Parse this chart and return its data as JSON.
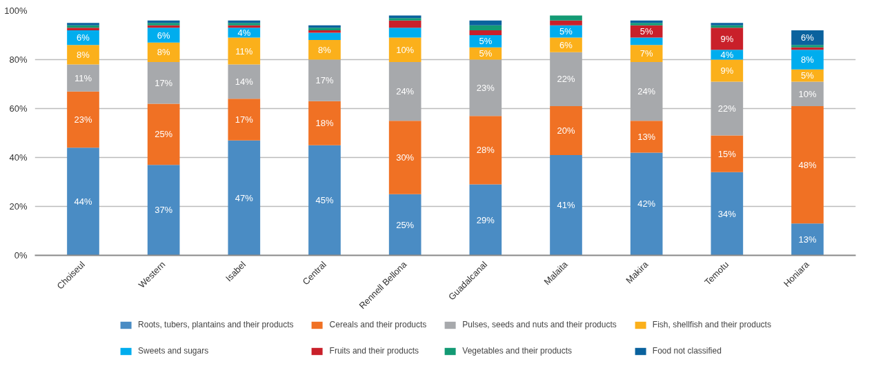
{
  "chart_data": {
    "type": "bar",
    "stacked": true,
    "categories": [
      "Choiseul",
      "Western",
      "Isabel",
      "Central",
      "Rennell Bellona",
      "Guadalcanal",
      "Malaita",
      "Makira",
      "Temotu",
      "Honiara"
    ],
    "series": [
      {
        "name": "Roots, tubers, plantains and their products",
        "color": "#4a8cc4",
        "values": [
          44,
          37,
          47,
          45,
          25,
          29,
          41,
          42,
          34,
          13
        ],
        "value_labels": [
          "44%",
          "37%",
          "47%",
          "45%",
          "25%",
          "29%",
          "41%",
          "42%",
          "34%",
          "13%"
        ]
      },
      {
        "name": "Cereals and their products",
        "color": "#f07124",
        "values": [
          23,
          25,
          17,
          18,
          30,
          28,
          20,
          13,
          15,
          48
        ],
        "value_labels": [
          "23%",
          "25%",
          "17%",
          "18%",
          "30%",
          "28%",
          "20%",
          "13%",
          "15%",
          "48%"
        ]
      },
      {
        "name": "Pulses, seeds and nuts and their products",
        "color": "#a7a9ac",
        "values": [
          11,
          17,
          14,
          17,
          24,
          23,
          22,
          24,
          22,
          10
        ],
        "value_labels": [
          "11%",
          "17%",
          "14%",
          "17%",
          "24%",
          "23%",
          "22%",
          "24%",
          "22%",
          "10%"
        ]
      },
      {
        "name": "Fish, shellfish and their products",
        "color": "#fbb01b",
        "values": [
          8,
          8,
          11,
          8,
          10,
          5,
          6,
          7,
          9,
          5
        ],
        "value_labels": [
          "8%",
          "8%",
          "11%",
          "8%",
          "10%",
          "5%",
          "6%",
          "7%",
          "9%",
          "5%"
        ]
      },
      {
        "name": "Sweets and sugars",
        "color": "#00adee",
        "values": [
          6,
          6,
          4,
          3,
          4,
          5,
          5,
          3,
          4,
          8
        ],
        "value_labels": [
          "6%",
          "6%",
          "4%",
          null,
          null,
          "5%",
          "5%",
          null,
          "4%",
          "8%"
        ]
      },
      {
        "name": "Fruits and their products",
        "color": "#c9202a",
        "values": [
          1,
          1,
          1,
          1,
          3,
          2,
          2,
          5,
          9,
          1
        ],
        "value_labels": [
          null,
          null,
          null,
          null,
          null,
          null,
          null,
          "5%",
          "9%",
          null
        ]
      },
      {
        "name": "Vegetables and their products",
        "color": "#139a74",
        "values": [
          1,
          1,
          1,
          1,
          1,
          2,
          2,
          1,
          1,
          1
        ],
        "value_labels": [
          null,
          null,
          null,
          null,
          null,
          null,
          null,
          null,
          null,
          null
        ]
      },
      {
        "name": "Food not classified",
        "color": "#0a629e",
        "values": [
          1,
          1,
          1,
          1,
          1,
          2,
          0,
          1,
          1,
          6
        ],
        "value_labels": [
          null,
          null,
          null,
          null,
          null,
          null,
          null,
          null,
          null,
          "6%"
        ]
      }
    ],
    "ylim": [
      0,
      100
    ],
    "yticks": [
      {
        "value": 0,
        "label": "0%"
      },
      {
        "value": 20,
        "label": "20%"
      },
      {
        "value": 40,
        "label": "40%"
      },
      {
        "value": 60,
        "label": "60%"
      },
      {
        "value": 80,
        "label": "80%"
      },
      {
        "value": 100,
        "label": "100%"
      }
    ],
    "grid": "y",
    "legend": "bottom"
  }
}
